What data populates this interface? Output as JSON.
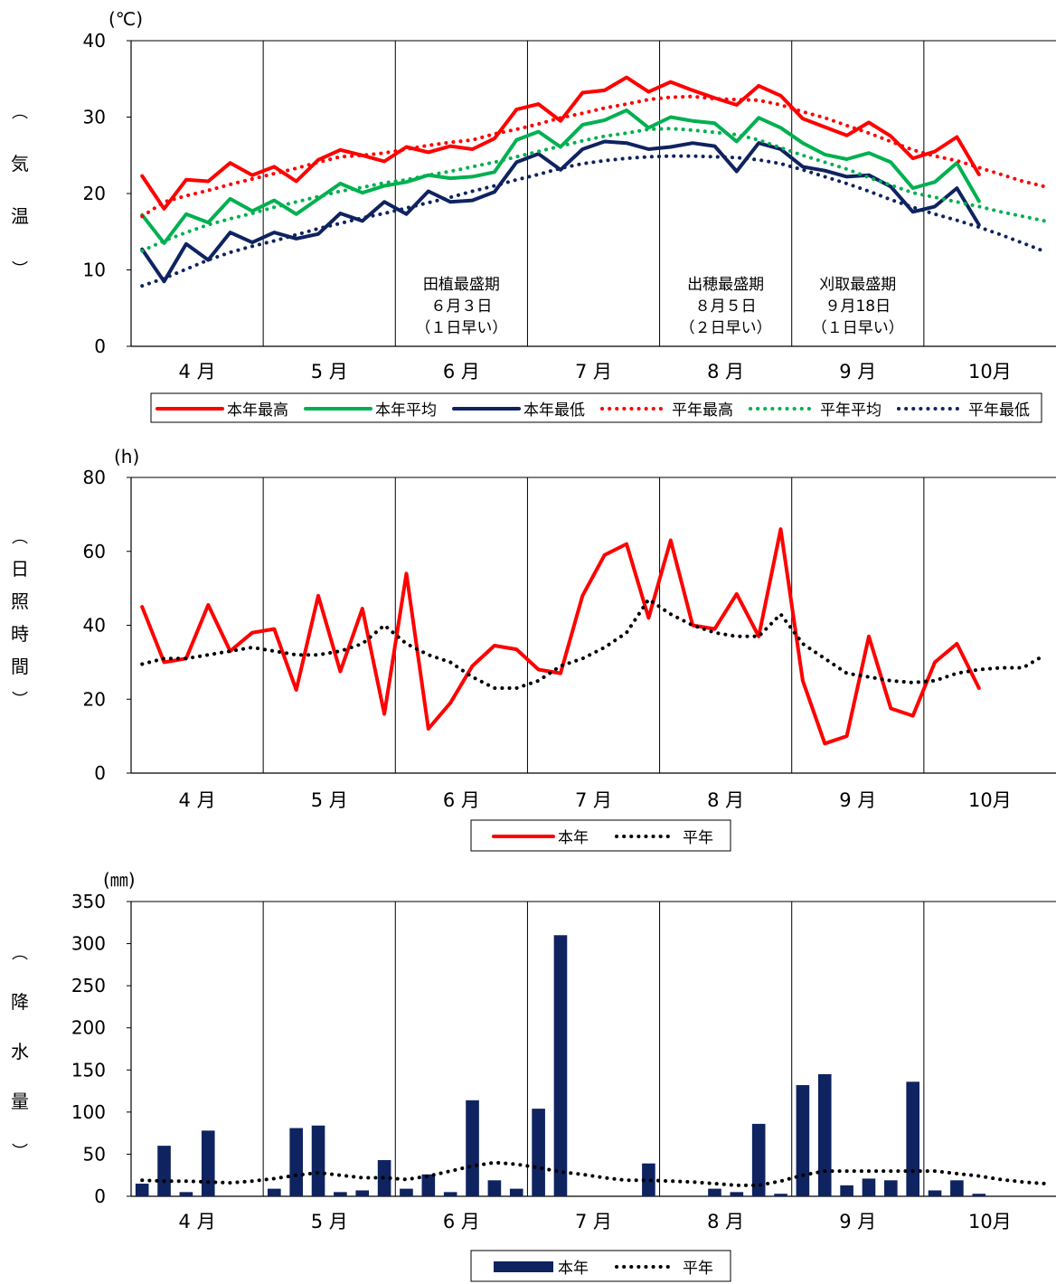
{
  "months": [
    "4 月",
    "5 月",
    "6 月",
    "7 月",
    "8 月",
    "9 月",
    "10月"
  ],
  "colors": {
    "max_this": "#ff0000",
    "avg_this": "#00b050",
    "min_this": "#0f2360",
    "normal_black": "#000000",
    "bar": "#0f2360"
  },
  "chart_data": [
    {
      "type": "line",
      "unit": "(℃)",
      "ylabel": "（気温）",
      "ylim": [
        0,
        40
      ],
      "yticks": [
        0,
        10,
        20,
        30,
        40
      ],
      "x": [
        "4月1半旬",
        "4月2半旬",
        "4月3半旬",
        "4月4半旬",
        "4月5半旬",
        "4月6半旬",
        "5月1半旬",
        "5月2半旬",
        "5月3半旬",
        "5月4半旬",
        "5月5半旬",
        "5月6半旬",
        "6月1半旬",
        "6月2半旬",
        "6月3半旬",
        "6月4半旬",
        "6月5半旬",
        "6月6半旬",
        "7月1半旬",
        "7月2半旬",
        "7月3半旬",
        "7月4半旬",
        "7月5半旬",
        "7月6半旬",
        "8月1半旬",
        "8月2半旬",
        "8月3半旬",
        "8月4半旬",
        "8月5半旬",
        "8月6半旬",
        "9月1半旬",
        "9月2半旬",
        "9月3半旬",
        "9月4半旬",
        "9月5半旬",
        "9月6半旬",
        "10月1半旬",
        "10月2半旬",
        "10月3半旬",
        "10月4半旬",
        "10月5半旬",
        "10月6半旬"
      ],
      "series": [
        {
          "name": "本年最高",
          "style": "solid",
          "color": "#ff0000",
          "values": [
            22.3,
            18.0,
            21.8,
            21.6,
            24.0,
            22.4,
            23.5,
            21.6,
            24.4,
            25.7,
            25.0,
            24.2,
            26.1,
            25.4,
            26.2,
            25.8,
            27.2,
            31.0,
            31.7,
            29.5,
            33.2,
            33.5,
            35.2,
            33.3,
            34.6,
            33.5,
            32.5,
            31.6,
            34.1,
            32.8,
            29.8,
            28.7,
            27.6,
            29.3,
            27.5,
            24.6,
            25.5,
            27.4,
            22.5,
            null,
            null,
            null
          ]
        },
        {
          "name": "本年平均",
          "style": "solid",
          "color": "#00b050",
          "values": [
            17.2,
            13.5,
            17.3,
            16.2,
            19.3,
            17.7,
            19.1,
            17.3,
            19.3,
            21.3,
            20.1,
            21.0,
            21.5,
            22.4,
            22.0,
            22.2,
            22.8,
            27.0,
            28.1,
            26.1,
            29.0,
            29.6,
            30.9,
            28.6,
            30.0,
            29.5,
            29.2,
            26.8,
            29.9,
            28.6,
            26.6,
            25.1,
            24.5,
            25.3,
            24.1,
            20.7,
            21.5,
            24.0,
            19.0,
            null,
            null,
            null
          ]
        },
        {
          "name": "本年最低",
          "style": "solid",
          "color": "#0f2360",
          "values": [
            12.7,
            8.5,
            13.4,
            11.3,
            14.9,
            13.6,
            14.9,
            14.1,
            14.7,
            17.4,
            16.4,
            18.9,
            17.3,
            20.3,
            18.9,
            19.1,
            20.2,
            24.1,
            25.2,
            23.1,
            25.8,
            26.8,
            26.6,
            25.8,
            26.1,
            26.6,
            26.2,
            22.9,
            26.6,
            25.8,
            23.5,
            23.0,
            22.2,
            22.4,
            20.9,
            17.6,
            18.3,
            20.7,
            15.9,
            null,
            null,
            null
          ]
        },
        {
          "name": "平年最高",
          "style": "dotted",
          "color": "#ff0000",
          "values": [
            17.0,
            18.9,
            19.7,
            20.4,
            21.2,
            21.9,
            22.6,
            23.3,
            24.1,
            24.8,
            25.0,
            25.3,
            25.8,
            26.3,
            26.7,
            27.0,
            27.8,
            28.4,
            29.1,
            29.9,
            30.5,
            31.2,
            31.7,
            32.3,
            32.6,
            32.7,
            32.4,
            32.3,
            32.2,
            31.6,
            30.7,
            29.9,
            28.9,
            27.9,
            26.8,
            25.7,
            24.9,
            24.3,
            23.4,
            22.5,
            21.6,
            20.9
          ]
        },
        {
          "name": "平年平均",
          "style": "dotted",
          "color": "#00b050",
          "values": [
            12.5,
            13.8,
            14.9,
            15.9,
            16.7,
            17.4,
            18.2,
            18.9,
            19.6,
            20.3,
            20.8,
            21.4,
            21.8,
            22.4,
            22.9,
            23.5,
            24.1,
            24.8,
            25.5,
            26.2,
            26.9,
            27.5,
            27.9,
            28.4,
            28.5,
            28.3,
            28.0,
            27.7,
            27.0,
            26.0,
            25.0,
            24.1,
            23.2,
            22.1,
            21.1,
            20.1,
            19.5,
            18.9,
            18.3,
            17.6,
            17.0,
            16.4
          ]
        },
        {
          "name": "平年最低",
          "style": "dotted",
          "color": "#0f2360",
          "values": [
            7.9,
            8.9,
            10.1,
            11.3,
            12.3,
            13.1,
            13.8,
            14.6,
            15.4,
            16.1,
            16.8,
            17.4,
            18.1,
            18.8,
            19.5,
            20.3,
            21.0,
            21.8,
            22.5,
            23.3,
            23.9,
            24.3,
            24.6,
            24.8,
            24.9,
            24.9,
            24.8,
            24.7,
            24.4,
            23.9,
            23.1,
            22.2,
            21.3,
            20.3,
            19.2,
            18.2,
            17.3,
            16.5,
            15.6,
            14.6,
            13.5,
            12.4
          ]
        }
      ],
      "annotations": [
        {
          "lines": [
            "田植最盛期",
            "６月３日",
            "（１日早い）"
          ]
        },
        {
          "lines": [
            "出穂最盛期",
            "８月５日",
            "（２日早い）"
          ]
        },
        {
          "lines": [
            "刈取最盛期",
            "９月18日",
            "（１日早い）"
          ]
        }
      ],
      "legend": [
        "本年最高",
        "本年平均",
        "本年最低",
        "平年最高",
        "平年平均",
        "平年最低"
      ]
    },
    {
      "type": "line",
      "unit": "(h)",
      "ylabel": "（日照時間）",
      "ylim": [
        0,
        80
      ],
      "yticks": [
        0,
        20,
        40,
        60,
        80
      ],
      "series": [
        {
          "name": "本年",
          "style": "solid",
          "color": "#ff0000",
          "values": [
            45,
            30,
            31,
            45.5,
            33,
            38,
            39,
            22.5,
            48,
            27.5,
            44.5,
            16,
            54,
            12,
            19,
            29,
            34.5,
            33.5,
            28,
            27,
            48,
            59,
            62,
            42,
            63,
            40,
            39,
            48.5,
            37,
            66,
            25,
            8,
            10,
            37,
            17.5,
            15.5,
            30,
            35,
            23,
            null,
            null,
            null
          ]
        },
        {
          "name": "平年",
          "style": "dotted",
          "color": "#000000",
          "values": [
            29.5,
            31,
            31,
            32,
            33,
            34,
            33,
            32,
            32,
            33,
            35,
            40,
            35,
            32,
            30,
            26,
            23,
            23,
            25,
            29,
            31,
            34,
            38,
            47,
            43,
            40,
            38,
            37,
            37,
            43,
            35,
            31,
            27,
            26,
            25,
            24.5,
            25,
            27,
            28,
            28.5,
            28.5,
            32
          ]
        }
      ],
      "legend": [
        "本年",
        "平年"
      ]
    },
    {
      "type": "bar",
      "unit": "(㎜)",
      "ylabel": "（降水量）",
      "ylim": [
        0,
        350
      ],
      "yticks": [
        0,
        50,
        100,
        150,
        200,
        250,
        300,
        350
      ],
      "series": [
        {
          "name": "本年",
          "style": "bar",
          "color": "#0f2360",
          "values": [
            15,
            60,
            5,
            78,
            0,
            0,
            9,
            81,
            84,
            5,
            7,
            43,
            9,
            26,
            5,
            114,
            19,
            9,
            104,
            310,
            0,
            0,
            0,
            39,
            0,
            0,
            9,
            5,
            86,
            3,
            132,
            145,
            13,
            21,
            19,
            136,
            7,
            19,
            3,
            0,
            0,
            0
          ]
        },
        {
          "name": "平年",
          "style": "dotted",
          "color": "#000000",
          "values": [
            19,
            18,
            18,
            17,
            16,
            18,
            21,
            25,
            28,
            25,
            22,
            22,
            20,
            24,
            30,
            36,
            40,
            38,
            34,
            29,
            26,
            22,
            19,
            19,
            18,
            17,
            15,
            13,
            13,
            18,
            25,
            30,
            30,
            30,
            30,
            30,
            30,
            27,
            24,
            20,
            17,
            15
          ]
        }
      ],
      "legend": [
        "本年",
        "平年"
      ]
    }
  ]
}
